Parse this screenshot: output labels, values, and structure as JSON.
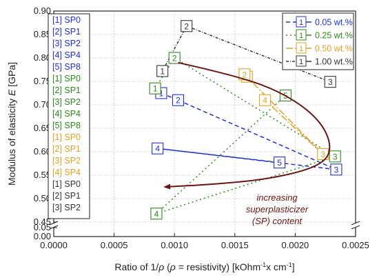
{
  "chart_data": {
    "type": "scatter",
    "xlabel_parts": [
      "Ratio of 1/",
      "ρ",
      " (",
      "ρ",
      " = resistivity) [kOhm",
      "-1",
      "x cm",
      "-1",
      "]"
    ],
    "ylabel_parts": [
      "Modulus of elasticity ",
      "E",
      " [GPa]"
    ],
    "xlim": [
      0.0,
      0.0025
    ],
    "ylim_upper": [
      0.45,
      0.9
    ],
    "ylim_lower": [
      0.0,
      0.05
    ],
    "x_ticks": [
      "0.0000",
      "0.0005",
      "0.0010",
      "0.0015",
      "0.0020",
      "0.0025"
    ],
    "x_tick_values": [
      0.0,
      0.0005,
      0.001,
      0.0015,
      0.002,
      0.0025
    ],
    "y_ticks": [
      "0.90",
      "0.85",
      "0.80",
      "0.75",
      "0.70",
      "0.65",
      "0.60",
      "0.55",
      "0.50",
      "0.45"
    ],
    "y_tick_values": [
      0.9,
      0.85,
      0.8,
      0.75,
      0.7,
      0.65,
      0.6,
      0.55,
      0.5,
      0.45
    ],
    "y_lower_ticks": [
      "0.05",
      "0.00"
    ],
    "y_lower_tick_values": [
      0.05,
      0.0
    ],
    "grid": true,
    "colors": {
      "blue": "#1f2fd0",
      "green": "#2a8a1a",
      "orange": "#e0a020",
      "black": "#333333",
      "arrow": "#6b1414"
    },
    "series": [
      {
        "name": "0.05 wt.%",
        "color": "#1f2fd0",
        "dash": "6,4",
        "points": [
          {
            "label": "1",
            "x": 0.00089,
            "y": 0.725
          },
          {
            "label": "2",
            "x": 0.00103,
            "y": 0.71
          },
          {
            "label": "3",
            "x": 0.00234,
            "y": 0.562
          },
          {
            "label": "4",
            "x": 0.00086,
            "y": 0.607
          },
          {
            "label": "5",
            "x": 0.00187,
            "y": 0.577
          }
        ],
        "lines": [
          [
            0,
            1
          ],
          [
            1,
            2
          ],
          [
            2,
            3
          ],
          [
            3,
            4
          ]
        ]
      },
      {
        "name": "0.25 wt.%",
        "color": "#2a8a1a",
        "dash": "2,4",
        "points": [
          {
            "label": "1",
            "x": 0.00084,
            "y": 0.735
          },
          {
            "label": "2",
            "x": 0.001,
            "y": 0.8
          },
          {
            "label": "3",
            "x": 0.00233,
            "y": 0.59
          },
          {
            "label": "4",
            "x": 0.00085,
            "y": 0.468
          },
          {
            "label": "5",
            "x": 0.00192,
            "y": 0.72
          }
        ],
        "lines": [
          [
            0,
            1
          ],
          [
            1,
            2
          ],
          [
            2,
            3
          ],
          [
            3,
            4
          ]
        ]
      },
      {
        "name": "0.50 wt.%",
        "color": "#e0a020",
        "dash": "10,3,2,3",
        "points": [
          {
            "label": "1",
            "x": 0.0016,
            "y": 0.76
          },
          {
            "label": "2",
            "x": 0.00158,
            "y": 0.765
          },
          {
            "label": "3",
            "x": 0.00223,
            "y": 0.595
          },
          {
            "label": "4",
            "x": 0.00175,
            "y": 0.71
          }
        ],
        "lines": [
          [
            0,
            1
          ],
          [
            1,
            2
          ],
          [
            2,
            3
          ]
        ]
      },
      {
        "name": "1.00 wt.%",
        "color": "#333333",
        "dash": "4,2,1,2",
        "points": [
          {
            "label": "1",
            "x": 0.0009,
            "y": 0.772
          },
          {
            "label": "2",
            "x": 0.0011,
            "y": 0.868
          },
          {
            "label": "3",
            "x": 0.00229,
            "y": 0.749
          }
        ],
        "lines": [
          [
            0,
            1
          ],
          [
            1,
            2
          ]
        ]
      }
    ],
    "trend_arrow": {
      "points": [
        [
          0.00103,
          0.79
        ],
        [
          0.0015,
          0.763
        ],
        [
          0.0019,
          0.726
        ],
        [
          0.0022,
          0.67
        ],
        [
          0.00231,
          0.61
        ],
        [
          0.00222,
          0.57
        ],
        [
          0.0018,
          0.542
        ],
        [
          0.0013,
          0.53
        ],
        [
          0.00092,
          0.525
        ]
      ],
      "label_lines": [
        "increasing",
        "superplasticizer",
        "(SP) content"
      ]
    },
    "sample_legend": [
      {
        "label": "[1] SP0",
        "color": "#1f2fd0"
      },
      {
        "label": "[2] SP1",
        "color": "#1f2fd0"
      },
      {
        "label": "[3] SP2",
        "color": "#1f2fd0"
      },
      {
        "label": "[4] SP4",
        "color": "#1f2fd0"
      },
      {
        "label": "[5] SP8",
        "color": "#1f2fd0"
      },
      {
        "label": "[1] SP0",
        "color": "#2a8a1a"
      },
      {
        "label": "[2] SP1",
        "color": "#2a8a1a"
      },
      {
        "label": "[3] SP2",
        "color": "#2a8a1a"
      },
      {
        "label": "[4] SP4",
        "color": "#2a8a1a"
      },
      {
        "label": "[5] SP8",
        "color": "#2a8a1a"
      },
      {
        "label": "[1] SP0",
        "color": "#e0a020"
      },
      {
        "label": "[2] SP1",
        "color": "#e0a020"
      },
      {
        "label": "[3] SP2",
        "color": "#e0a020"
      },
      {
        "label": "[4] SP4",
        "color": "#e0a020"
      },
      {
        "label": "[1] SP0",
        "color": "#333333"
      },
      {
        "label": "[2] SP1",
        "color": "#333333"
      },
      {
        "label": "[3] SP2",
        "color": "#333333"
      }
    ],
    "series_legend_position": "top-right",
    "sample_legend_position": "left"
  }
}
